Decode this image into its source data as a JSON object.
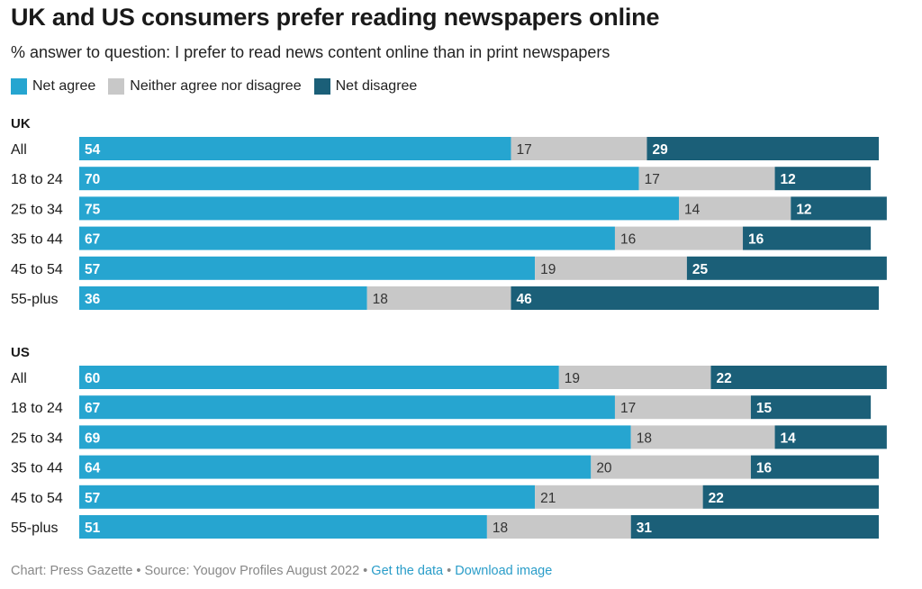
{
  "title": "UK and US consumers prefer reading newspapers online",
  "subtitle": "% answer to question: I prefer to read news content online than in print newspapers",
  "colors": {
    "net_agree": "#26a5d0",
    "neither": "#c8c8c8",
    "net_disagree": "#1b5f78"
  },
  "chart_data": {
    "type": "bar",
    "orientation": "horizontal",
    "stacked": true,
    "legend_position": "top-left",
    "series_names": [
      "Net agree",
      "Neither agree nor disagree",
      "Net disagree"
    ],
    "groups": [
      {
        "name": "UK",
        "categories": [
          "All",
          "18 to 24",
          "25 to 34",
          "35 to 44",
          "45 to 54",
          "55-plus"
        ],
        "series": [
          {
            "name": "Net agree",
            "values": [
              54,
              70,
              75,
              67,
              57,
              36
            ]
          },
          {
            "name": "Neither agree nor disagree",
            "values": [
              17,
              17,
              14,
              16,
              19,
              18
            ]
          },
          {
            "name": "Net disagree",
            "values": [
              29,
              12,
              12,
              16,
              25,
              46
            ]
          }
        ]
      },
      {
        "name": "US",
        "categories": [
          "All",
          "18 to 24",
          "25 to 34",
          "35 to 44",
          "45 to 54",
          "55-plus"
        ],
        "series": [
          {
            "name": "Net agree",
            "values": [
              60,
              67,
              69,
              64,
              57,
              51
            ]
          },
          {
            "name": "Neither agree nor disagree",
            "values": [
              19,
              17,
              18,
              20,
              21,
              18
            ]
          },
          {
            "name": "Net disagree",
            "values": [
              22,
              15,
              14,
              16,
              22,
              31
            ]
          }
        ]
      }
    ]
  },
  "footer": {
    "credit": "Chart: Press Gazette",
    "separator": " • ",
    "source": "Source: Yougov Profiles August 2022",
    "get_data": "Get the data",
    "download": "Download image"
  }
}
